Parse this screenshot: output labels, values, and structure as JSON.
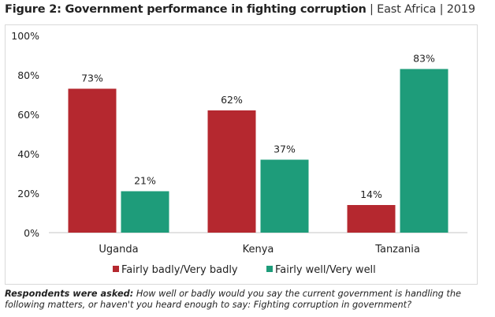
{
  "header": {
    "title_bold": "Figure 2: Government performance in fighting corruption",
    "separator": "|",
    "region": "East Africa",
    "year": "2019"
  },
  "chart_data": {
    "type": "bar",
    "title": "Figure 2: Government performance in fighting corruption | East Africa | 2019",
    "xlabel": "",
    "ylabel": "",
    "ylim": [
      0,
      100
    ],
    "yticks": [
      0,
      20,
      40,
      60,
      80,
      100
    ],
    "ytick_labels": [
      "0%",
      "20%",
      "40%",
      "60%",
      "80%",
      "100%"
    ],
    "categories": [
      "Uganda",
      "Kenya",
      "Tanzania"
    ],
    "series": [
      {
        "name": "Fairly badly/Very badly",
        "color": "#b5282f",
        "values": [
          73,
          62,
          14
        ],
        "labels": [
          "73%",
          "62%",
          "14%"
        ]
      },
      {
        "name": "Fairly well/Very well",
        "color": "#1e9c7a",
        "values": [
          21,
          37,
          83
        ],
        "labels": [
          "21%",
          "37%",
          "83%"
        ]
      }
    ],
    "grid": false,
    "legend_position": "bottom"
  },
  "footnote": {
    "lead": "Respondents were asked:",
    "text": " How well or badly would you say the current government is  handling the following matters, or haven't you heard enough to say: Fighting corruption in government?"
  }
}
